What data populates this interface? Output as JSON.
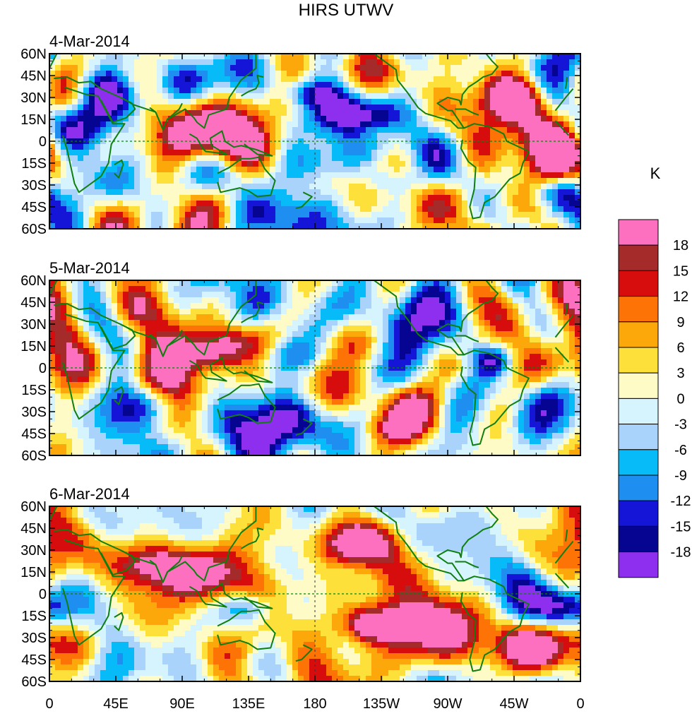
{
  "title": "HIRS UTWV",
  "chart_data": {
    "type": "heatmap",
    "variable": "HIRS UTWV",
    "units": "K",
    "panels": [
      {
        "date": "4-Mar-2014",
        "seed": 11
      },
      {
        "date": "5-Mar-2014",
        "seed": 23
      },
      {
        "date": "6-Mar-2014",
        "seed": 37
      }
    ],
    "y_ticks": [
      "60N",
      "45N",
      "30N",
      "15N",
      "0",
      "15S",
      "30S",
      "45S",
      "60S"
    ],
    "y_values": [
      60,
      45,
      30,
      15,
      0,
      -15,
      -30,
      -45,
      -60
    ],
    "x_ticks": [
      "0",
      "45E",
      "90E",
      "135E",
      "180",
      "135W",
      "90W",
      "45W",
      "0"
    ],
    "x_values": [
      0,
      45,
      90,
      135,
      180,
      225,
      270,
      315,
      360
    ],
    "xlim": [
      0,
      360
    ],
    "ylim": [
      -60,
      60
    ],
    "colorbar": {
      "levels": [
        "18",
        "15",
        "12",
        "9",
        "6",
        "3",
        "0",
        "-3",
        "-6",
        "-9",
        "-12",
        "-15",
        "-18"
      ],
      "colors": [
        "#fd6fbf",
        "#a52a2a",
        "#d70c0c",
        "#fd7306",
        "#fda80a",
        "#fde03a",
        "#fffbc6",
        "#d6f4fd",
        "#a9d3fb",
        "#07bbf9",
        "#1e8ef0",
        "#1515d8",
        "#050592",
        "#8e2ff0"
      ]
    },
    "map_line_color": "#0f7f0f"
  }
}
